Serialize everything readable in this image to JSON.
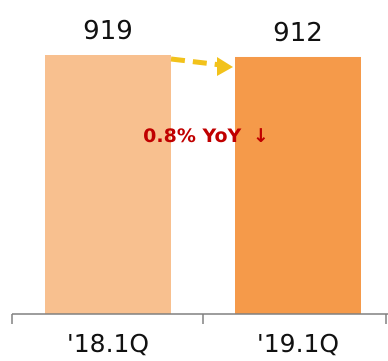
{
  "chart_data": {
    "type": "bar",
    "title": "",
    "xlabel": "",
    "ylabel": "",
    "categories": [
      "'18.1Q",
      "'19.1Q"
    ],
    "values": [
      919,
      912
    ],
    "value_labels": [
      "919",
      "912"
    ],
    "ylim": [
      0,
      919
    ],
    "grid": false,
    "legend": "none",
    "bar_colors": [
      "#f8c08f",
      "#f59a4a"
    ],
    "arrow_color": "#f2c21b",
    "annotation": {
      "text": "0.8% YoY",
      "arrow": "↓",
      "color": "#c00000"
    }
  }
}
